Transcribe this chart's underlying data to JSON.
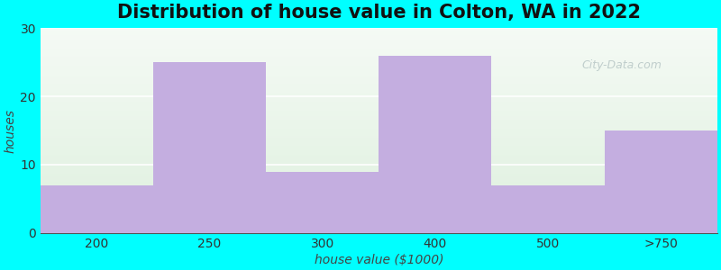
{
  "title": "Distribution of house value in Colton, WA in 2022",
  "xlabel": "house value ($1000)",
  "ylabel": "houses",
  "categories": [
    "200",
    "250",
    "300",
    "400",
    "500",
    ">750"
  ],
  "values": [
    7,
    25,
    9,
    26,
    7,
    15
  ],
  "bar_color": "#c4aee0",
  "background_color": "#00ffff",
  "plot_bg_green": "#dff0df",
  "plot_bg_white": "#f2f5f2",
  "ylim": [
    0,
    30
  ],
  "yticks": [
    0,
    10,
    20,
    30
  ],
  "grid_color": "#d0d8d0",
  "title_fontsize": 15,
  "axis_label_fontsize": 10,
  "tick_fontsize": 10,
  "watermark": "City-Data.com"
}
